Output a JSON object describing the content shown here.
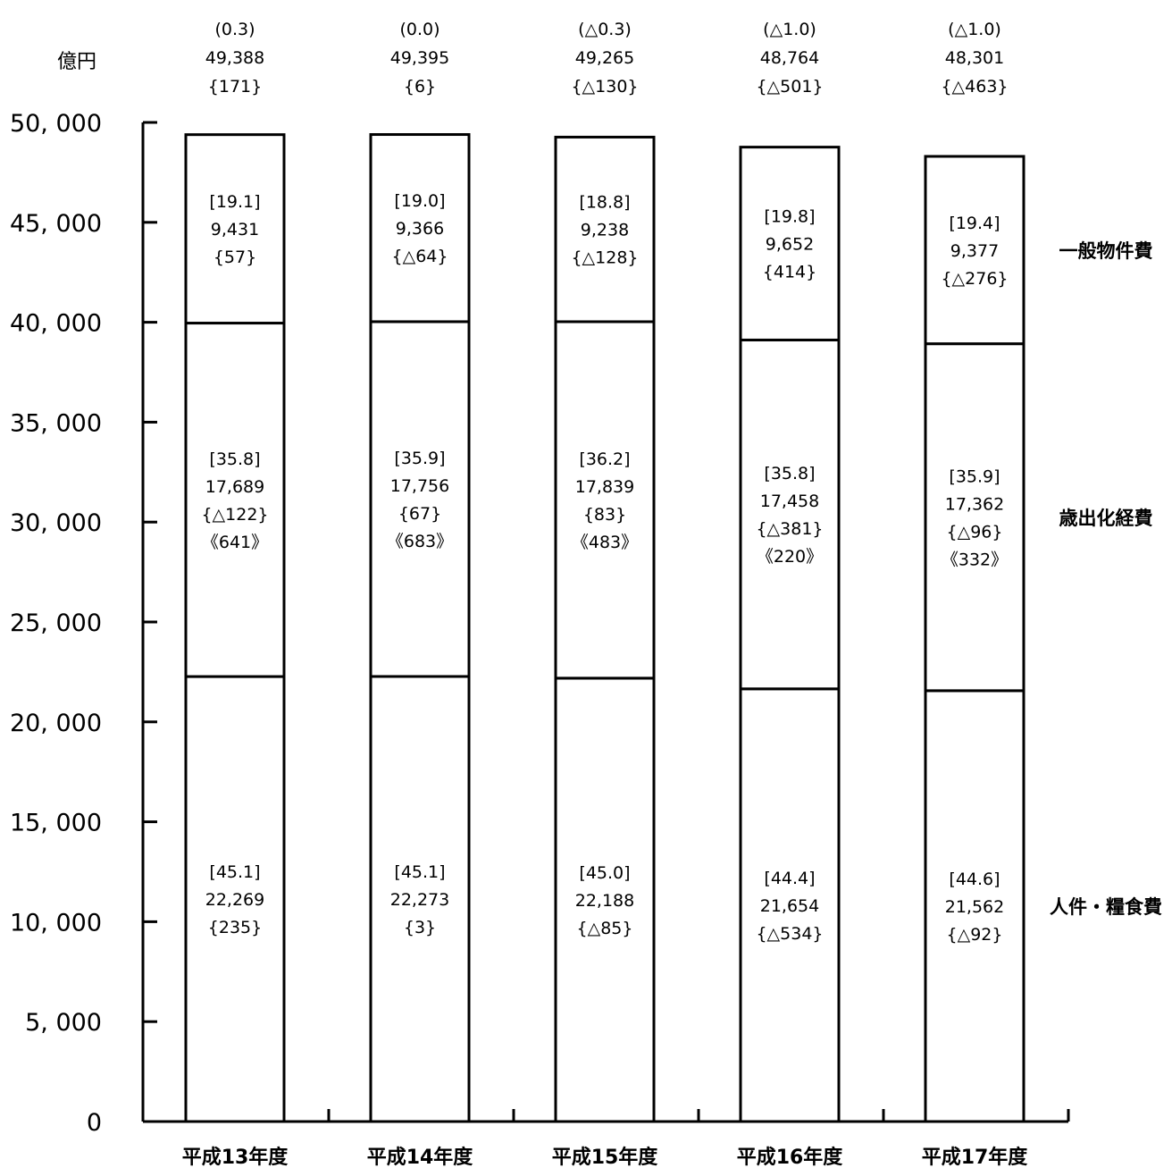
{
  "chart_data": {
    "type": "bar",
    "stacked": true,
    "unit": "億円",
    "categories": [
      "平成13年度",
      "平成14年度",
      "平成15年度",
      "平成16年度",
      "平成17年度"
    ],
    "ylim": [
      0,
      50000
    ],
    "yticks": [
      0,
      5000,
      10000,
      15000,
      20000,
      25000,
      30000,
      35000,
      40000,
      45000,
      50000
    ],
    "ytick_labels": [
      "0",
      "5, 000",
      "10, 000",
      "15, 000",
      "20, 000",
      "25, 000",
      "30, 000",
      "35, 000",
      "40, 000",
      "45, 000",
      "50, 000"
    ],
    "totals": [
      49388,
      49395,
      49265,
      48764,
      48301
    ],
    "total_labels": [
      [
        "(0.3)",
        "49,388",
        "{171}"
      ],
      [
        "(0.0)",
        "49,395",
        "{6}"
      ],
      [
        "(△0.3)",
        "49,265",
        "{△130}"
      ],
      [
        "(△1.0)",
        "48,764",
        "{△501}"
      ],
      [
        "(△1.0)",
        "48,301",
        "{△463}"
      ]
    ],
    "series": [
      {
        "name": "人件・糧食費",
        "values": [
          22269,
          22273,
          22188,
          21654,
          21562
        ],
        "labels": [
          [
            "[45.1]",
            "22,269",
            "{235}"
          ],
          [
            "[45.1]",
            "22,273",
            "{3}"
          ],
          [
            "[45.0]",
            "22,188",
            "{△85}"
          ],
          [
            "[44.4]",
            "21,654",
            "{△534}"
          ],
          [
            "[44.6]",
            "21,562",
            "{△92}"
          ]
        ]
      },
      {
        "name": "歳出化経費",
        "values": [
          17689,
          17756,
          17839,
          17458,
          17362
        ],
        "labels": [
          [
            "[35.8]",
            "17,689",
            "{△122}",
            "《641》"
          ],
          [
            "[35.9]",
            "17,756",
            "{67}",
            "《683》"
          ],
          [
            "[36.2]",
            "17,839",
            "{83}",
            "《483》"
          ],
          [
            "[35.8]",
            "17,458",
            "{△381}",
            "《220》"
          ],
          [
            "[35.9]",
            "17,362",
            "{△96}",
            "《332》"
          ]
        ]
      },
      {
        "name": "一般物件費",
        "values": [
          9431,
          9366,
          9238,
          9652,
          9377
        ],
        "labels": [
          [
            "[19.1]",
            "9,431",
            "{57}"
          ],
          [
            "[19.0]",
            "9,366",
            "{△64}"
          ],
          [
            "[18.8]",
            "9,238",
            "{△128}"
          ],
          [
            "[19.8]",
            "9,652",
            "{414}"
          ],
          [
            "[19.4]",
            "9,377",
            "{△276}"
          ]
        ]
      }
    ],
    "legend_placement": "right"
  }
}
